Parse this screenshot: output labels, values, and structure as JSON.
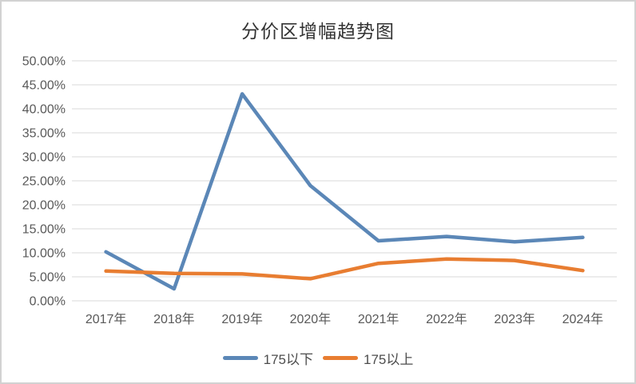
{
  "chart_data": {
    "type": "line",
    "title": "分价区增幅趋势图",
    "categories": [
      "2017年",
      "2018年",
      "2019年",
      "2020年",
      "2021年",
      "2022年",
      "2023年",
      "2024年"
    ],
    "series": [
      {
        "name": "175以下",
        "color": "#5b87b7",
        "values": [
          10.2,
          2.5,
          43.1,
          24.0,
          12.5,
          13.4,
          12.3,
          13.2
        ]
      },
      {
        "name": "175以上",
        "color": "#e87d31",
        "values": [
          6.2,
          5.7,
          5.6,
          4.6,
          7.8,
          8.7,
          8.4,
          6.3
        ]
      }
    ],
    "y_axis": {
      "min": 0,
      "max": 50,
      "step": 5,
      "unit": "percent",
      "tick_labels": [
        "0.00%",
        "5.00%",
        "10.00%",
        "15.00%",
        "20.00%",
        "25.00%",
        "30.00%",
        "35.00%",
        "40.00%",
        "45.00%",
        "50.00%"
      ]
    },
    "grid": "horizontal",
    "gridline_color": "#d9d9d9",
    "axis_text_color": "#595959",
    "legend_position": "bottom"
  }
}
